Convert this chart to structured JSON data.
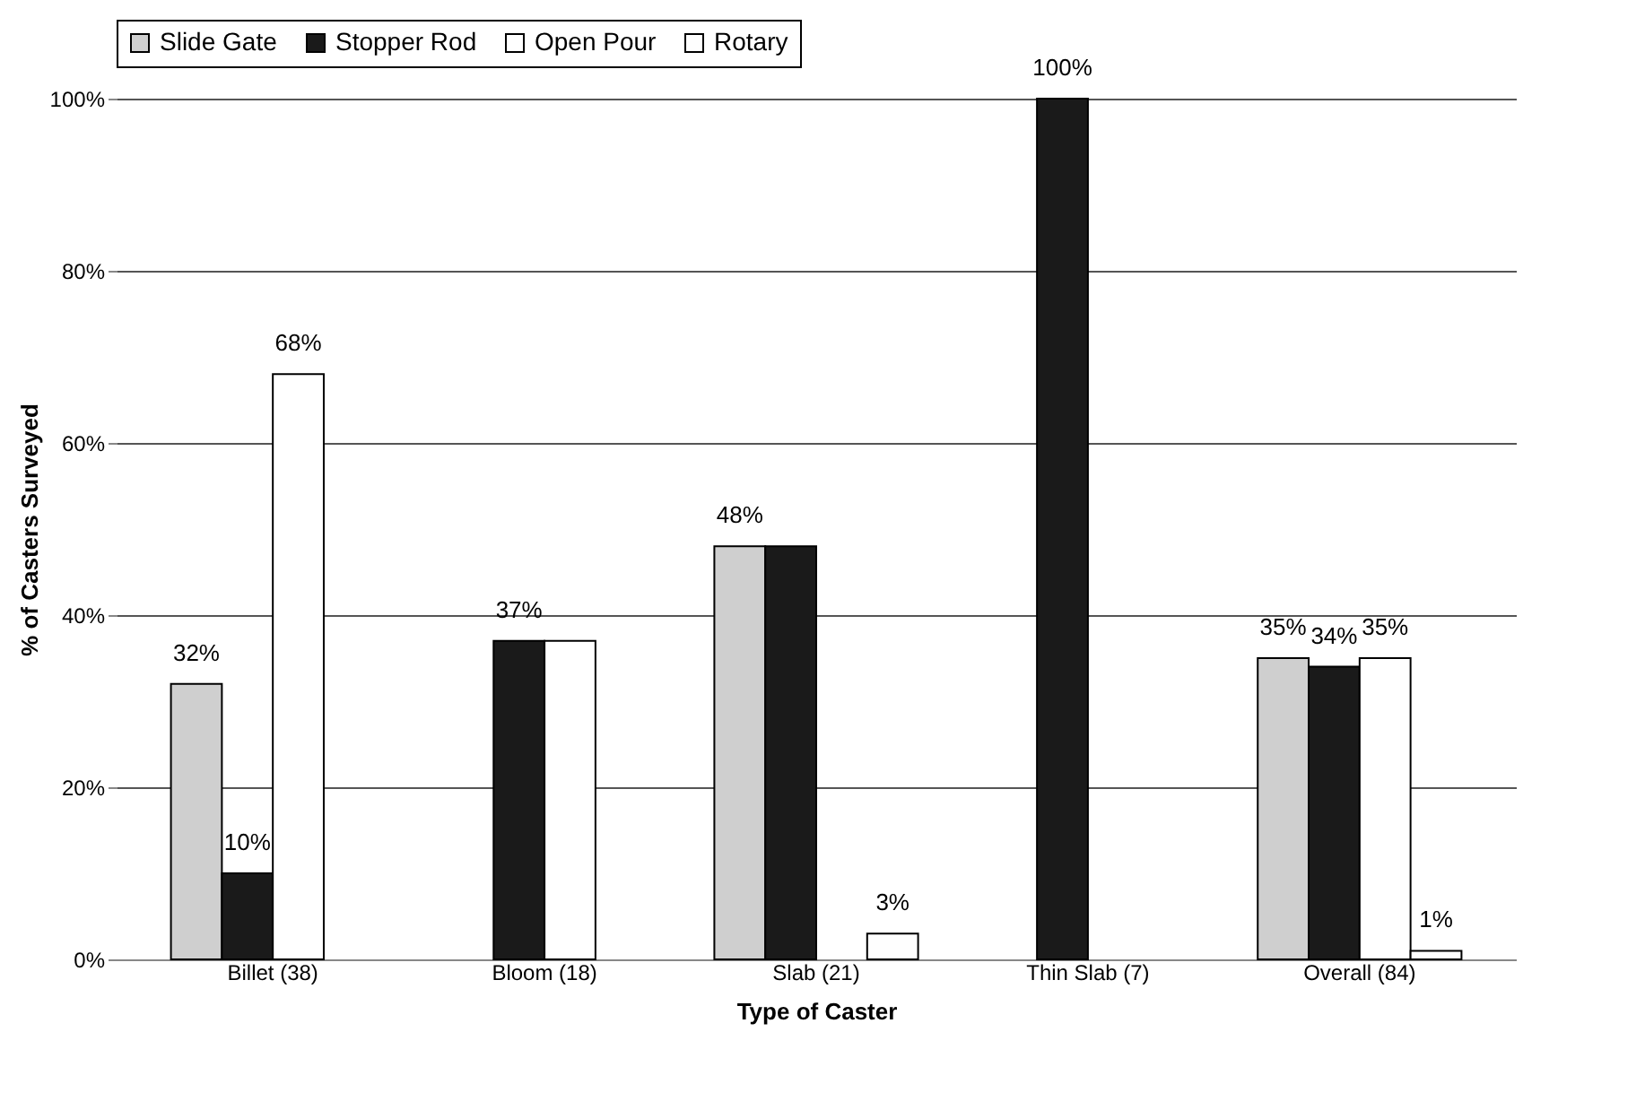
{
  "chart_data": {
    "type": "bar",
    "xlabel": "Type of Caster",
    "ylabel": "% of Casters Surveyed",
    "categories": [
      "Billet (38)",
      "Bloom (18)",
      "Slab (21)",
      "Thin Slab (7)",
      "Overall (84)"
    ],
    "series": [
      {
        "name": "Slide Gate",
        "color": "#cfcfcf",
        "values": [
          32,
          null,
          48,
          null,
          35
        ],
        "value_labels": [
          "32%",
          null,
          "48%",
          null,
          "35%"
        ]
      },
      {
        "name": "Stopper Rod",
        "color": "#1a1a1a",
        "values": [
          10,
          37,
          48,
          100,
          34
        ],
        "value_labels": [
          "10%",
          "37%",
          null,
          "100%",
          "34%"
        ]
      },
      {
        "name": "Open Pour",
        "color": "#ffffff",
        "values": [
          68,
          37,
          null,
          null,
          35
        ],
        "value_labels": [
          "68%",
          null,
          null,
          null,
          "35%"
        ]
      },
      {
        "name": "Rotary",
        "color": "#fefefe",
        "values": [
          null,
          null,
          3,
          null,
          1
        ],
        "value_labels": [
          null,
          null,
          "3%",
          null,
          "1%"
        ]
      }
    ],
    "ylim": [
      0,
      100
    ],
    "yticks": [
      {
        "value": 0,
        "label": "0%"
      },
      {
        "value": 20,
        "label": "20%"
      },
      {
        "value": 40,
        "label": "40%"
      },
      {
        "value": 60,
        "label": "60%"
      },
      {
        "value": 80,
        "label": "80%"
      },
      {
        "value": 100,
        "label": "100%"
      }
    ],
    "grid": "y",
    "legend": "top"
  }
}
